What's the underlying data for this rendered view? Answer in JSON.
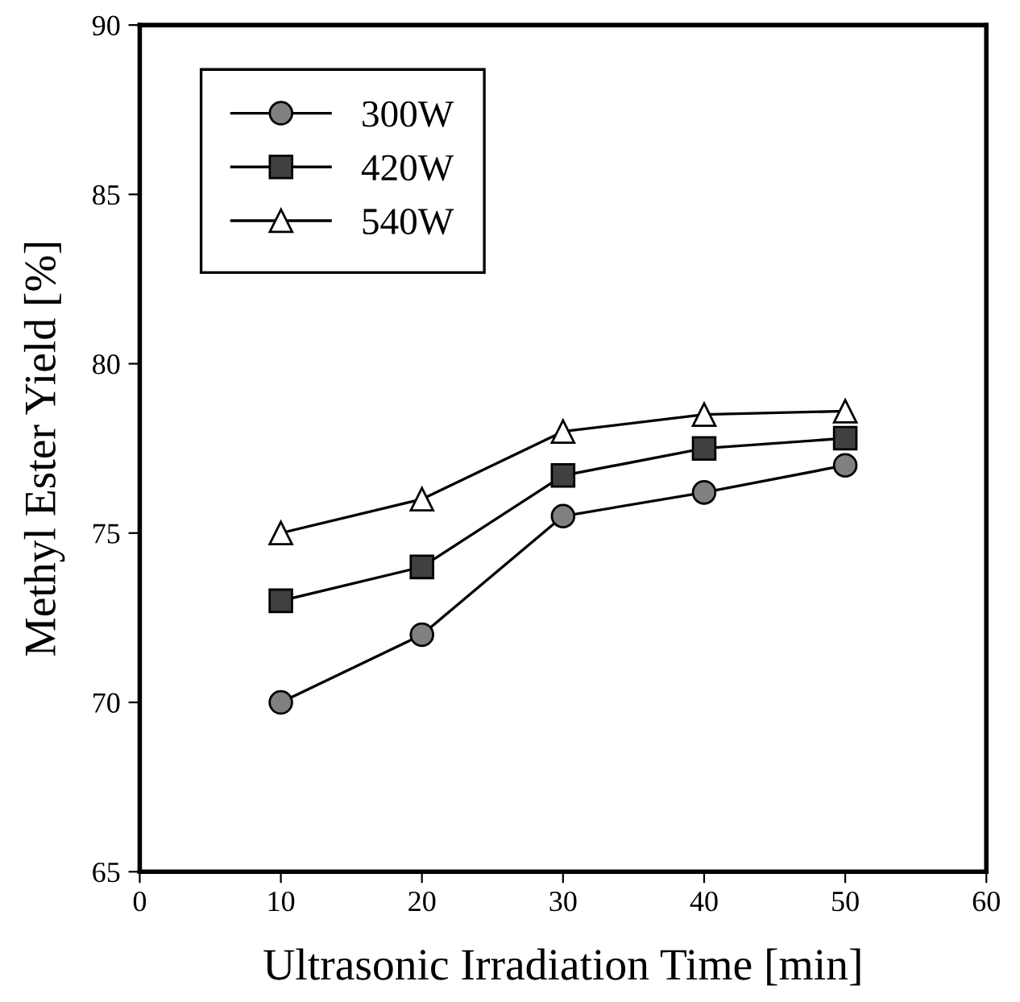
{
  "chart_data": {
    "type": "line",
    "xlabel": "Ultrasonic Irradiation Time [min]",
    "ylabel": "Methyl Ester Yield [%]",
    "x": [
      10,
      20,
      30,
      40,
      50
    ],
    "series": [
      {
        "name": "300W",
        "color": "#808080",
        "marker": "circle",
        "values": [
          70.0,
          72.0,
          75.5,
          76.2,
          77.0
        ]
      },
      {
        "name": "420W",
        "color": "#404040",
        "marker": "square",
        "values": [
          73.0,
          74.0,
          76.7,
          77.5,
          77.8
        ]
      },
      {
        "name": "540W",
        "color": "#ffffff",
        "marker": "triangle",
        "values": [
          75.0,
          76.0,
          78.0,
          78.5,
          78.6
        ]
      }
    ],
    "xlim": [
      0,
      60
    ],
    "xticks": [
      0,
      10,
      20,
      30,
      40,
      50,
      60
    ],
    "ylim": [
      65,
      90
    ],
    "yticks": [
      65,
      70,
      75,
      80,
      85,
      90
    ],
    "grid": false,
    "legend": "top left",
    "line_style": "solid"
  }
}
